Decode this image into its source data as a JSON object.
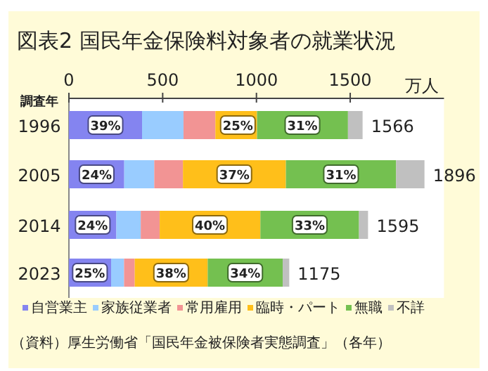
{
  "chart_data": {
    "type": "bar",
    "orientation": "horizontal",
    "stacked": true,
    "title": "図表2  国民年金保険料対象者の就業状況",
    "xlabel": "万人",
    "ylabel": "調査年",
    "categories": [
      "1996",
      "2005",
      "2014",
      "2023"
    ],
    "series": [
      {
        "name": "自営業主",
        "color": "#8484f0",
        "values": [
          390,
          295,
          253,
          225
        ]
      },
      {
        "name": "家族従業者",
        "color": "#99ccff",
        "values": [
          221,
          160,
          130,
          69
        ]
      },
      {
        "name": "常用雇用",
        "color": "#f29494",
        "values": [
          170,
          153,
          101,
          57
        ]
      },
      {
        "name": "臨時・パート",
        "color": "#ffbf1a",
        "values": [
          222,
          549,
          537,
          389
        ]
      },
      {
        "name": "無職",
        "color": "#74c050",
        "values": [
          485,
          588,
          526,
          400
        ]
      },
      {
        "name": "不詳",
        "color": "#c0c0c0",
        "values": [
          78,
          151,
          48,
          35
        ]
      }
    ],
    "xlim": [
      0,
      2000
    ],
    "xticks": [
      0,
      500,
      1000,
      1500
    ],
    "totals": [
      "1566",
      "1896",
      "1595",
      "1175"
    ],
    "legend": "bottom",
    "annotations": [
      {
        "text": "39%",
        "x": 195,
        "y": "1996"
      },
      {
        "text": "25%",
        "x": 901,
        "y": "1996"
      },
      {
        "text": "31%",
        "x": 1245,
        "y": "1996"
      },
      {
        "text": "24%",
        "x": 148,
        "y": "2005"
      },
      {
        "text": "37%",
        "x": 882,
        "y": "2005"
      },
      {
        "text": "31%",
        "x": 1451,
        "y": "2005"
      },
      {
        "text": "24%",
        "x": 127,
        "y": "2014"
      },
      {
        "text": "40%",
        "x": 752,
        "y": "2014"
      },
      {
        "text": "33%",
        "x": 1284,
        "y": "2014"
      },
      {
        "text": "25%",
        "x": 112,
        "y": "2023"
      },
      {
        "text": "38%",
        "x": 545,
        "y": "2023"
      },
      {
        "text": "34%",
        "x": 940,
        "y": "2023"
      },
      "（資料）厚生労働省「国民年金被保険者実態調査」（各年）"
    ]
  }
}
